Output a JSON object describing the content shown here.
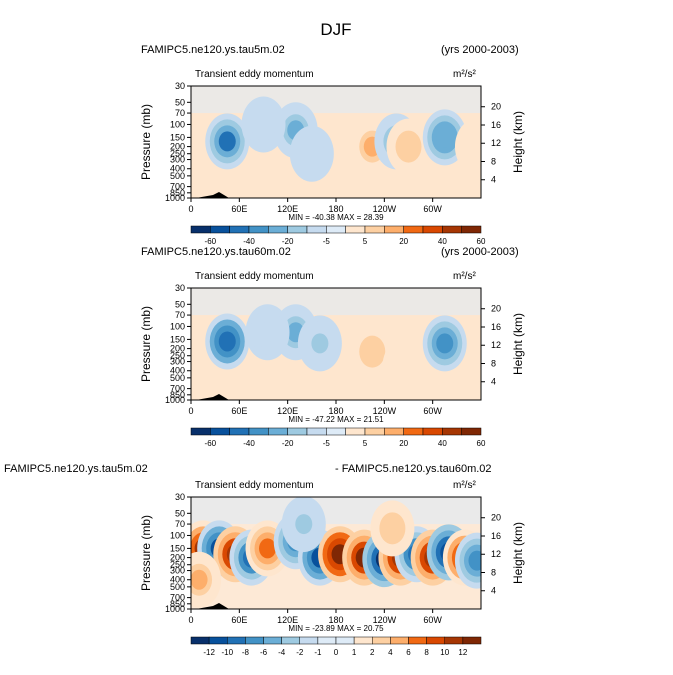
{
  "page": {
    "title": "DJF"
  },
  "chart_data": [
    {
      "type": "heatmap",
      "panel_title_left": "FAMIPC5.ne120.ys.tau5m.02",
      "panel_title_right": "(yrs 2000-2003)",
      "subtitle_left": "Transient eddy momentum",
      "units": "m²/s²",
      "ylabel": "Pressure (mb)",
      "ylabel_right": "Height (km)",
      "x_ticks": [
        "0",
        "60E",
        "120E",
        "180",
        "120W",
        "60W"
      ],
      "x_tick_values": [
        0,
        60,
        120,
        180,
        240,
        300
      ],
      "xlim": [
        0,
        360
      ],
      "pressure_ticks": [
        "30",
        "50",
        "70",
        "100",
        "150",
        "200",
        "250",
        "300",
        "400",
        "500",
        "700",
        "850",
        "1000"
      ],
      "pressure_values": [
        30,
        50,
        70,
        100,
        150,
        200,
        250,
        300,
        400,
        500,
        700,
        850,
        1000
      ],
      "ylim": [
        1000,
        30
      ],
      "height_ticks": [
        "20",
        "16",
        "12",
        "8",
        "4"
      ],
      "height_values": [
        20,
        16,
        12,
        8,
        4
      ],
      "stats_text": "MIN = -40.38   MAX =  28.39",
      "min": -40.38,
      "max": 28.39,
      "colorbar_labels": [
        "-60",
        "-40",
        "-20",
        "-5",
        "5",
        "20",
        "40",
        "60"
      ],
      "features": [
        {
          "lon": 45,
          "p": 170,
          "value": -40
        },
        {
          "lon": 130,
          "p": 120,
          "value": -25
        },
        {
          "lon": 225,
          "p": 200,
          "value": 25
        },
        {
          "lon": 255,
          "p": 170,
          "value": -25
        },
        {
          "lon": 270,
          "p": 200,
          "value": 20
        },
        {
          "lon": 315,
          "p": 150,
          "value": -30
        },
        {
          "lon": 150,
          "p": 250,
          "value": -10
        },
        {
          "lon": 90,
          "p": 100,
          "value": -8
        },
        {
          "lon": 355,
          "p": 200,
          "value": 12
        }
      ]
    },
    {
      "type": "heatmap",
      "panel_title_left": "FAMIPC5.ne120.ys.tau60m.02",
      "panel_title_right": "(yrs 2000-2003)",
      "subtitle_left": "Transient eddy momentum",
      "units": "m²/s²",
      "ylabel": "Pressure (mb)",
      "ylabel_right": "Height (km)",
      "x_ticks": [
        "0",
        "60E",
        "120E",
        "180",
        "120W",
        "60W"
      ],
      "x_tick_values": [
        0,
        60,
        120,
        180,
        240,
        300
      ],
      "xlim": [
        0,
        360
      ],
      "pressure_ticks": [
        "30",
        "50",
        "70",
        "100",
        "150",
        "200",
        "250",
        "300",
        "400",
        "500",
        "700",
        "850",
        "1000"
      ],
      "pressure_values": [
        30,
        50,
        70,
        100,
        150,
        200,
        250,
        300,
        400,
        500,
        700,
        850,
        1000
      ],
      "ylim": [
        1000,
        30
      ],
      "height_ticks": [
        "20",
        "16",
        "12",
        "8",
        "4"
      ],
      "height_values": [
        20,
        16,
        12,
        8,
        4
      ],
      "stats_text": "MIN = -47.22   MAX =  21.51",
      "min": -47.22,
      "max": 21.51,
      "colorbar_labels": [
        "-60",
        "-40",
        "-20",
        "-5",
        "5",
        "20",
        "40",
        "60"
      ],
      "features": [
        {
          "lon": 45,
          "p": 160,
          "value": -47
        },
        {
          "lon": 130,
          "p": 120,
          "value": -25
        },
        {
          "lon": 160,
          "p": 170,
          "value": -15
        },
        {
          "lon": 225,
          "p": 220,
          "value": 21
        },
        {
          "lon": 315,
          "p": 170,
          "value": -35
        },
        {
          "lon": 95,
          "p": 120,
          "value": -6
        },
        {
          "lon": 265,
          "p": 350,
          "value": 8
        }
      ]
    },
    {
      "type": "heatmap",
      "panel_title_left": "FAMIPC5.ne120.ys.tau5m.02",
      "panel_title_right": "- FAMIPC5.ne120.ys.tau60m.02",
      "subtitle_left": "Transient eddy momentum",
      "units": "m²/s²",
      "ylabel": "Pressure (mb)",
      "ylabel_right": "Height (km)",
      "x_ticks": [
        "0",
        "60E",
        "120E",
        "180",
        "120W",
        "60W"
      ],
      "x_tick_values": [
        0,
        60,
        120,
        180,
        240,
        300
      ],
      "xlim": [
        0,
        360
      ],
      "pressure_ticks": [
        "30",
        "50",
        "70",
        "100",
        "150",
        "200",
        "250",
        "300",
        "400",
        "500",
        "700",
        "850",
        "1000"
      ],
      "pressure_values": [
        30,
        50,
        70,
        100,
        150,
        200,
        250,
        300,
        400,
        500,
        700,
        850,
        1000
      ],
      "ylim": [
        1000,
        30
      ],
      "height_ticks": [
        "20",
        "16",
        "12",
        "8",
        "4"
      ],
      "height_values": [
        20,
        16,
        12,
        8,
        4
      ],
      "stats_text": "MIN = -23.89   MAX =  20.75",
      "min": -23.89,
      "max": 20.75,
      "colorbar_labels": [
        "-12",
        "-10",
        "-8",
        "-6",
        "-4",
        "-2",
        "-1",
        "0",
        "1",
        "2",
        "4",
        "6",
        "8",
        "10",
        "12"
      ],
      "features": [
        {
          "lon": 15,
          "p": 150,
          "value": 11
        },
        {
          "lon": 35,
          "p": 150,
          "value": -12
        },
        {
          "lon": 55,
          "p": 180,
          "value": 12
        },
        {
          "lon": 75,
          "p": 200,
          "value": -10
        },
        {
          "lon": 95,
          "p": 150,
          "value": 8
        },
        {
          "lon": 130,
          "p": 120,
          "value": -9
        },
        {
          "lon": 160,
          "p": 200,
          "value": -12
        },
        {
          "lon": 185,
          "p": 180,
          "value": 14
        },
        {
          "lon": 215,
          "p": 200,
          "value": 13
        },
        {
          "lon": 240,
          "p": 210,
          "value": -14
        },
        {
          "lon": 260,
          "p": 200,
          "value": 12
        },
        {
          "lon": 280,
          "p": 180,
          "value": -10
        },
        {
          "lon": 300,
          "p": 200,
          "value": 12
        },
        {
          "lon": 320,
          "p": 170,
          "value": -13
        },
        {
          "lon": 340,
          "p": 200,
          "value": 11
        },
        {
          "lon": 355,
          "p": 220,
          "value": -8
        },
        {
          "lon": 10,
          "p": 400,
          "value": 5
        },
        {
          "lon": 140,
          "p": 70,
          "value": -4
        },
        {
          "lon": 250,
          "p": 80,
          "value": 4
        }
      ]
    }
  ],
  "colormap": [
    "#08306b",
    "#08519c",
    "#2171b5",
    "#4292c6",
    "#6baed6",
    "#9ecae1",
    "#c6dbef",
    "#deebf7",
    "#fee6ce",
    "#fdd0a2",
    "#fdae6b",
    "#f16913",
    "#d94801",
    "#a63603",
    "#7f2704"
  ]
}
